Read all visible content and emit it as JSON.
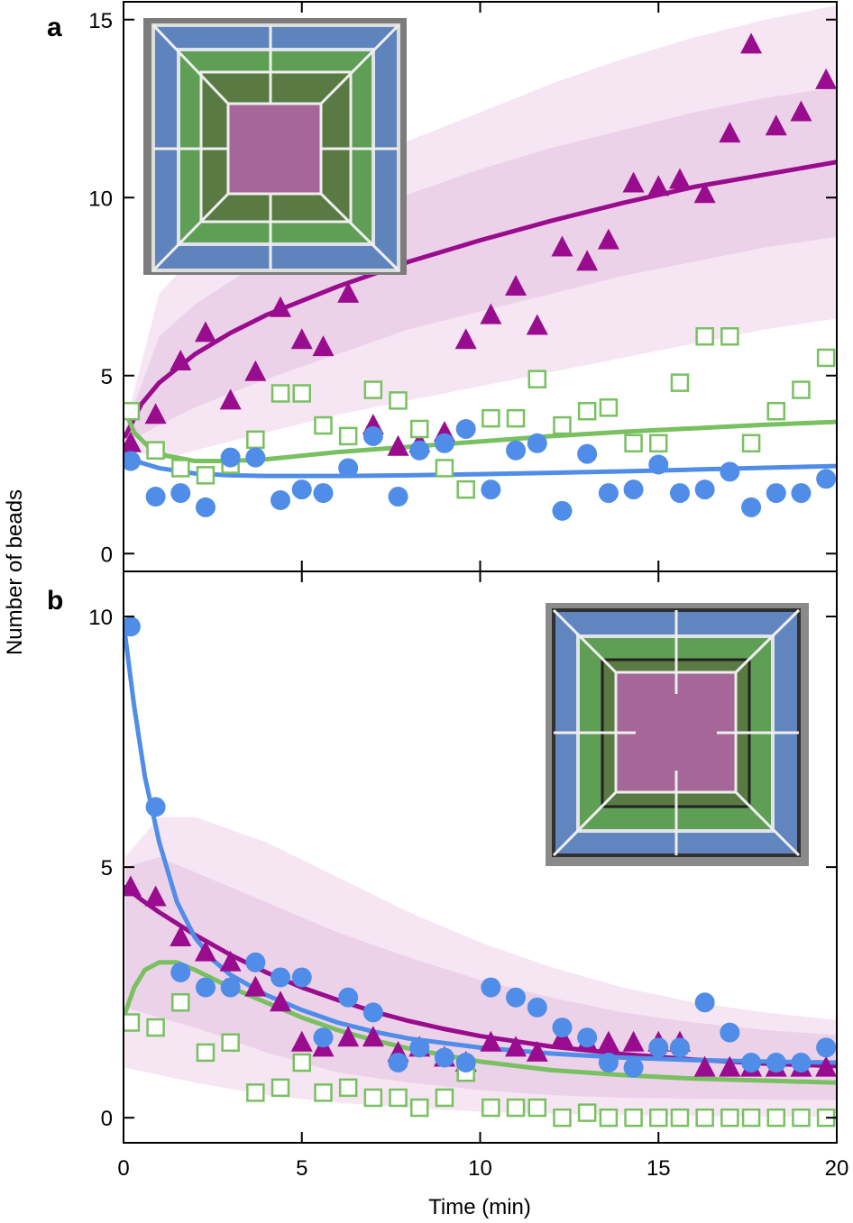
{
  "figure": {
    "ylabel": "Number of beads",
    "xlabel": "Time (min)",
    "colors": {
      "blue": "#4f8de8",
      "green": "#78c060",
      "purple": "#990c8e",
      "band_light": "#f6e6f4",
      "band_dark": "#ecd2e9"
    }
  },
  "chart_data": [
    {
      "type": "scatter",
      "panel_label": "a",
      "xlim": [
        0,
        20
      ],
      "ylim": [
        -0.5,
        15.5
      ],
      "xticks": [
        0,
        5,
        10,
        15,
        20
      ],
      "yticks": [
        0,
        5,
        10,
        15
      ],
      "inset": "square microfluidic chamber image with concentric blue, green and purple (central) zones",
      "series": [
        {
          "color": "purple",
          "marker": "triangle-filled",
          "x": [
            0.2,
            0.9,
            1.6,
            2.3,
            3.0,
            3.7,
            4.4,
            5.0,
            5.6,
            6.3,
            7.0,
            7.7,
            8.3,
            9.0,
            9.6,
            10.3,
            11.0,
            11.6,
            12.3,
            13.0,
            13.6,
            14.3,
            15.0,
            15.6,
            16.3,
            17.0,
            17.6,
            18.3,
            19.0,
            19.7
          ],
          "y": [
            3.1,
            3.9,
            5.4,
            6.2,
            4.3,
            5.1,
            6.9,
            6.0,
            5.8,
            7.3,
            3.6,
            3.0,
            3.1,
            3.4,
            6.0,
            6.7,
            7.5,
            6.4,
            8.6,
            8.2,
            8.8,
            10.4,
            10.3,
            10.5,
            10.1,
            11.8,
            14.3,
            12.0,
            12.4,
            13.3
          ],
          "fit": [
            [
              0.05,
              3.3
            ],
            [
              0.5,
              4.2
            ],
            [
              1,
              4.8
            ],
            [
              2,
              5.6
            ],
            [
              3,
              6.2
            ],
            [
              4,
              6.7
            ],
            [
              5,
              7.1
            ],
            [
              6,
              7.5
            ],
            [
              7,
              7.85
            ],
            [
              8,
              8.2
            ],
            [
              9,
              8.5
            ],
            [
              10,
              8.8
            ],
            [
              12,
              9.35
            ],
            [
              14,
              9.85
            ],
            [
              16,
              10.3
            ],
            [
              18,
              10.65
            ],
            [
              20,
              11.0
            ]
          ],
          "band_outer": [
            [
              0.05,
              3.0,
              3.6
            ],
            [
              1,
              2.6,
              7.3
            ],
            [
              2,
              2.9,
              8.4
            ],
            [
              4,
              3.4,
              9.6
            ],
            [
              6,
              3.9,
              10.7
            ],
            [
              8,
              4.3,
              11.6
            ],
            [
              10,
              4.7,
              12.4
            ],
            [
              12,
              5.1,
              13.2
            ],
            [
              14,
              5.5,
              13.9
            ],
            [
              16,
              5.9,
              14.5
            ],
            [
              18,
              6.3,
              15.0
            ],
            [
              20,
              6.6,
              15.4
            ]
          ],
          "band_inner": [
            [
              0.05,
              3.1,
              3.5
            ],
            [
              1,
              3.6,
              6.1
            ],
            [
              2,
              4.1,
              7.0
            ],
            [
              4,
              4.9,
              8.3
            ],
            [
              6,
              5.6,
              9.3
            ],
            [
              8,
              6.3,
              10.1
            ],
            [
              10,
              6.8,
              10.8
            ],
            [
              12,
              7.3,
              11.4
            ],
            [
              14,
              7.8,
              11.9
            ],
            [
              16,
              8.2,
              12.4
            ],
            [
              18,
              8.6,
              12.8
            ],
            [
              20,
              8.9,
              13.1
            ]
          ]
        },
        {
          "color": "green",
          "marker": "square-open",
          "x": [
            0.2,
            0.9,
            1.6,
            2.3,
            3.0,
            3.7,
            4.4,
            5.0,
            5.6,
            6.3,
            7.0,
            7.7,
            8.3,
            9.0,
            9.6,
            10.3,
            11.0,
            11.6,
            12.3,
            13.0,
            13.6,
            14.3,
            15.0,
            15.6,
            16.3,
            17.0,
            17.6,
            18.3,
            19.0,
            19.7
          ],
          "y": [
            4.0,
            2.9,
            2.4,
            2.2,
            2.5,
            3.2,
            4.5,
            4.5,
            3.6,
            3.3,
            4.6,
            4.3,
            3.5,
            2.4,
            1.8,
            3.8,
            3.8,
            4.9,
            3.6,
            4.0,
            4.1,
            3.1,
            3.1,
            4.8,
            6.1,
            6.1,
            3.1,
            4.0,
            4.6,
            5.5
          ],
          "fit": [
            [
              0.05,
              4.0
            ],
            [
              0.3,
              3.4
            ],
            [
              0.7,
              3.0
            ],
            [
              1.2,
              2.75
            ],
            [
              2,
              2.6
            ],
            [
              3,
              2.6
            ],
            [
              4,
              2.65
            ],
            [
              5,
              2.75
            ],
            [
              6,
              2.85
            ],
            [
              8,
              3.0
            ],
            [
              10,
              3.15
            ],
            [
              12,
              3.3
            ],
            [
              14,
              3.42
            ],
            [
              16,
              3.52
            ],
            [
              18,
              3.62
            ],
            [
              20,
              3.7
            ]
          ]
        },
        {
          "color": "blue",
          "marker": "circle-filled",
          "x": [
            0.2,
            0.9,
            1.6,
            2.3,
            3.0,
            3.7,
            4.4,
            5.0,
            5.6,
            6.3,
            7.0,
            7.7,
            8.3,
            9.0,
            9.6,
            10.3,
            11.0,
            11.6,
            12.3,
            13.0,
            13.6,
            14.3,
            15.0,
            15.6,
            16.3,
            17.0,
            17.6,
            18.3,
            19.0,
            19.7
          ],
          "y": [
            2.6,
            1.6,
            1.7,
            1.3,
            2.7,
            2.7,
            1.5,
            1.8,
            1.7,
            2.4,
            3.3,
            1.6,
            2.9,
            3.1,
            3.5,
            1.8,
            2.9,
            3.1,
            1.2,
            2.8,
            1.7,
            1.8,
            2.5,
            1.7,
            1.8,
            2.3,
            1.3,
            1.7,
            1.7,
            2.1
          ],
          "fit": [
            [
              0.05,
              2.85
            ],
            [
              0.5,
              2.55
            ],
            [
              1,
              2.4
            ],
            [
              2,
              2.25
            ],
            [
              3,
              2.2
            ],
            [
              4,
              2.18
            ],
            [
              6,
              2.18
            ],
            [
              8,
              2.2
            ],
            [
              10,
              2.23
            ],
            [
              12,
              2.27
            ],
            [
              14,
              2.31
            ],
            [
              16,
              2.36
            ],
            [
              18,
              2.41
            ],
            [
              20,
              2.46
            ]
          ]
        }
      ]
    },
    {
      "type": "scatter",
      "panel_label": "b",
      "xlim": [
        0,
        20
      ],
      "ylim": [
        -0.5,
        10.9
      ],
      "xticks": [
        0,
        5,
        10,
        15,
        20
      ],
      "yticks": [
        0,
        5,
        10
      ],
      "inset": "square microfluidic chamber image with concentric blue, green and purple (central) zones",
      "series": [
        {
          "color": "purple",
          "marker": "triangle-filled",
          "x": [
            0.2,
            0.9,
            1.6,
            2.3,
            3.0,
            3.7,
            4.4,
            5.0,
            5.6,
            6.3,
            7.0,
            7.7,
            8.3,
            9.0,
            9.6,
            10.3,
            11.0,
            11.6,
            12.3,
            13.0,
            13.6,
            14.3,
            15.0,
            15.6,
            16.3,
            17.0,
            17.6,
            18.3,
            19.0,
            19.7
          ],
          "y": [
            4.6,
            4.4,
            3.6,
            3.3,
            3.1,
            2.6,
            2.3,
            1.5,
            1.4,
            1.6,
            1.6,
            1.3,
            1.4,
            1.2,
            1.1,
            1.5,
            1.4,
            1.3,
            1.6,
            1.5,
            1.5,
            1.5,
            1.5,
            1.5,
            1.0,
            1.0,
            1.0,
            1.0,
            1.0,
            1.0
          ],
          "fit": [
            [
              0.05,
              4.6
            ],
            [
              0.5,
              4.35
            ],
            [
              1,
              4.1
            ],
            [
              2,
              3.65
            ],
            [
              3,
              3.25
            ],
            [
              4,
              2.9
            ],
            [
              5,
              2.6
            ],
            [
              6,
              2.35
            ],
            [
              7,
              2.12
            ],
            [
              8,
              1.93
            ],
            [
              9,
              1.77
            ],
            [
              10,
              1.63
            ],
            [
              12,
              1.42
            ],
            [
              14,
              1.27
            ],
            [
              16,
              1.16
            ],
            [
              18,
              1.08
            ],
            [
              20,
              1.03
            ]
          ],
          "band_outer": [
            [
              0.05,
              1.0,
              5.2
            ],
            [
              1,
              0.85,
              6.0
            ],
            [
              2,
              0.7,
              6.0
            ],
            [
              4,
              0.45,
              5.5
            ],
            [
              6,
              0.3,
              4.8
            ],
            [
              8,
              0.2,
              4.1
            ],
            [
              10,
              0.12,
              3.5
            ],
            [
              12,
              0.08,
              3.0
            ],
            [
              14,
              0.05,
              2.6
            ],
            [
              16,
              0.03,
              2.3
            ],
            [
              18,
              0.02,
              2.1
            ],
            [
              20,
              0.02,
              1.95
            ]
          ],
          "band_inner": [
            [
              0.05,
              2.2,
              5.0
            ],
            [
              1,
              2.0,
              5.2
            ],
            [
              2,
              1.8,
              4.9
            ],
            [
              4,
              1.3,
              4.3
            ],
            [
              6,
              0.9,
              3.7
            ],
            [
              8,
              0.7,
              3.2
            ],
            [
              10,
              0.55,
              2.75
            ],
            [
              12,
              0.45,
              2.4
            ],
            [
              14,
              0.4,
              2.1
            ],
            [
              16,
              0.38,
              1.9
            ],
            [
              18,
              0.36,
              1.75
            ],
            [
              20,
              0.35,
              1.65
            ]
          ]
        },
        {
          "color": "green",
          "marker": "square-open",
          "x": [
            0.2,
            0.9,
            1.6,
            2.3,
            3.0,
            3.7,
            4.4,
            5.0,
            5.6,
            6.3,
            7.0,
            7.7,
            8.3,
            9.0,
            9.6,
            10.3,
            11.0,
            11.6,
            12.3,
            13.0,
            13.6,
            14.3,
            15.0,
            15.6,
            16.3,
            17.0,
            17.6,
            18.3,
            19.0,
            19.7
          ],
          "y": [
            1.9,
            1.8,
            2.3,
            1.3,
            1.5,
            0.5,
            0.6,
            1.1,
            0.5,
            0.6,
            0.4,
            0.4,
            0.2,
            0.4,
            0.9,
            0.2,
            0.2,
            0.2,
            0.0,
            0.1,
            0.0,
            0.0,
            0.0,
            0.0,
            0.0,
            0.0,
            0.0,
            0.0,
            0.0,
            0.0
          ],
          "fit": [
            [
              0.05,
              2.1
            ],
            [
              0.3,
              2.6
            ],
            [
              0.6,
              2.95
            ],
            [
              1,
              3.1
            ],
            [
              1.5,
              3.1
            ],
            [
              2,
              2.95
            ],
            [
              3,
              2.6
            ],
            [
              4,
              2.3
            ],
            [
              5,
              2.0
            ],
            [
              6,
              1.75
            ],
            [
              7,
              1.55
            ],
            [
              8,
              1.38
            ],
            [
              10,
              1.12
            ],
            [
              12,
              0.95
            ],
            [
              14,
              0.85
            ],
            [
              16,
              0.78
            ],
            [
              18,
              0.74
            ],
            [
              20,
              0.7
            ]
          ]
        },
        {
          "color": "blue",
          "marker": "circle-filled",
          "x": [
            0.2,
            0.9,
            1.6,
            2.3,
            3.0,
            3.7,
            4.4,
            5.0,
            5.6,
            6.3,
            7.0,
            7.7,
            8.3,
            9.0,
            9.6,
            10.3,
            11.0,
            11.6,
            12.3,
            13.0,
            13.6,
            14.3,
            15.0,
            15.6,
            16.3,
            17.0,
            17.6,
            18.3,
            19.0,
            19.7
          ],
          "y": [
            9.8,
            6.2,
            2.9,
            2.6,
            2.6,
            3.1,
            2.8,
            2.8,
            1.6,
            2.4,
            2.1,
            1.1,
            1.4,
            1.2,
            1.1,
            2.6,
            2.4,
            2.2,
            1.8,
            1.6,
            1.1,
            1.0,
            1.4,
            1.4,
            2.3,
            1.7,
            1.1,
            1.1,
            1.1,
            1.4
          ],
          "fit": [
            [
              0.05,
              9.6
            ],
            [
              0.3,
              8.2
            ],
            [
              0.6,
              6.8
            ],
            [
              1,
              5.5
            ],
            [
              1.5,
              4.3
            ],
            [
              2,
              3.6
            ],
            [
              2.5,
              3.15
            ],
            [
              3,
              2.85
            ],
            [
              4,
              2.45
            ],
            [
              5,
              2.15
            ],
            [
              6,
              1.9
            ],
            [
              7,
              1.72
            ],
            [
              8,
              1.58
            ],
            [
              10,
              1.4
            ],
            [
              12,
              1.28
            ],
            [
              14,
              1.2
            ],
            [
              16,
              1.15
            ],
            [
              18,
              1.12
            ],
            [
              20,
              1.1
            ]
          ]
        }
      ]
    }
  ]
}
